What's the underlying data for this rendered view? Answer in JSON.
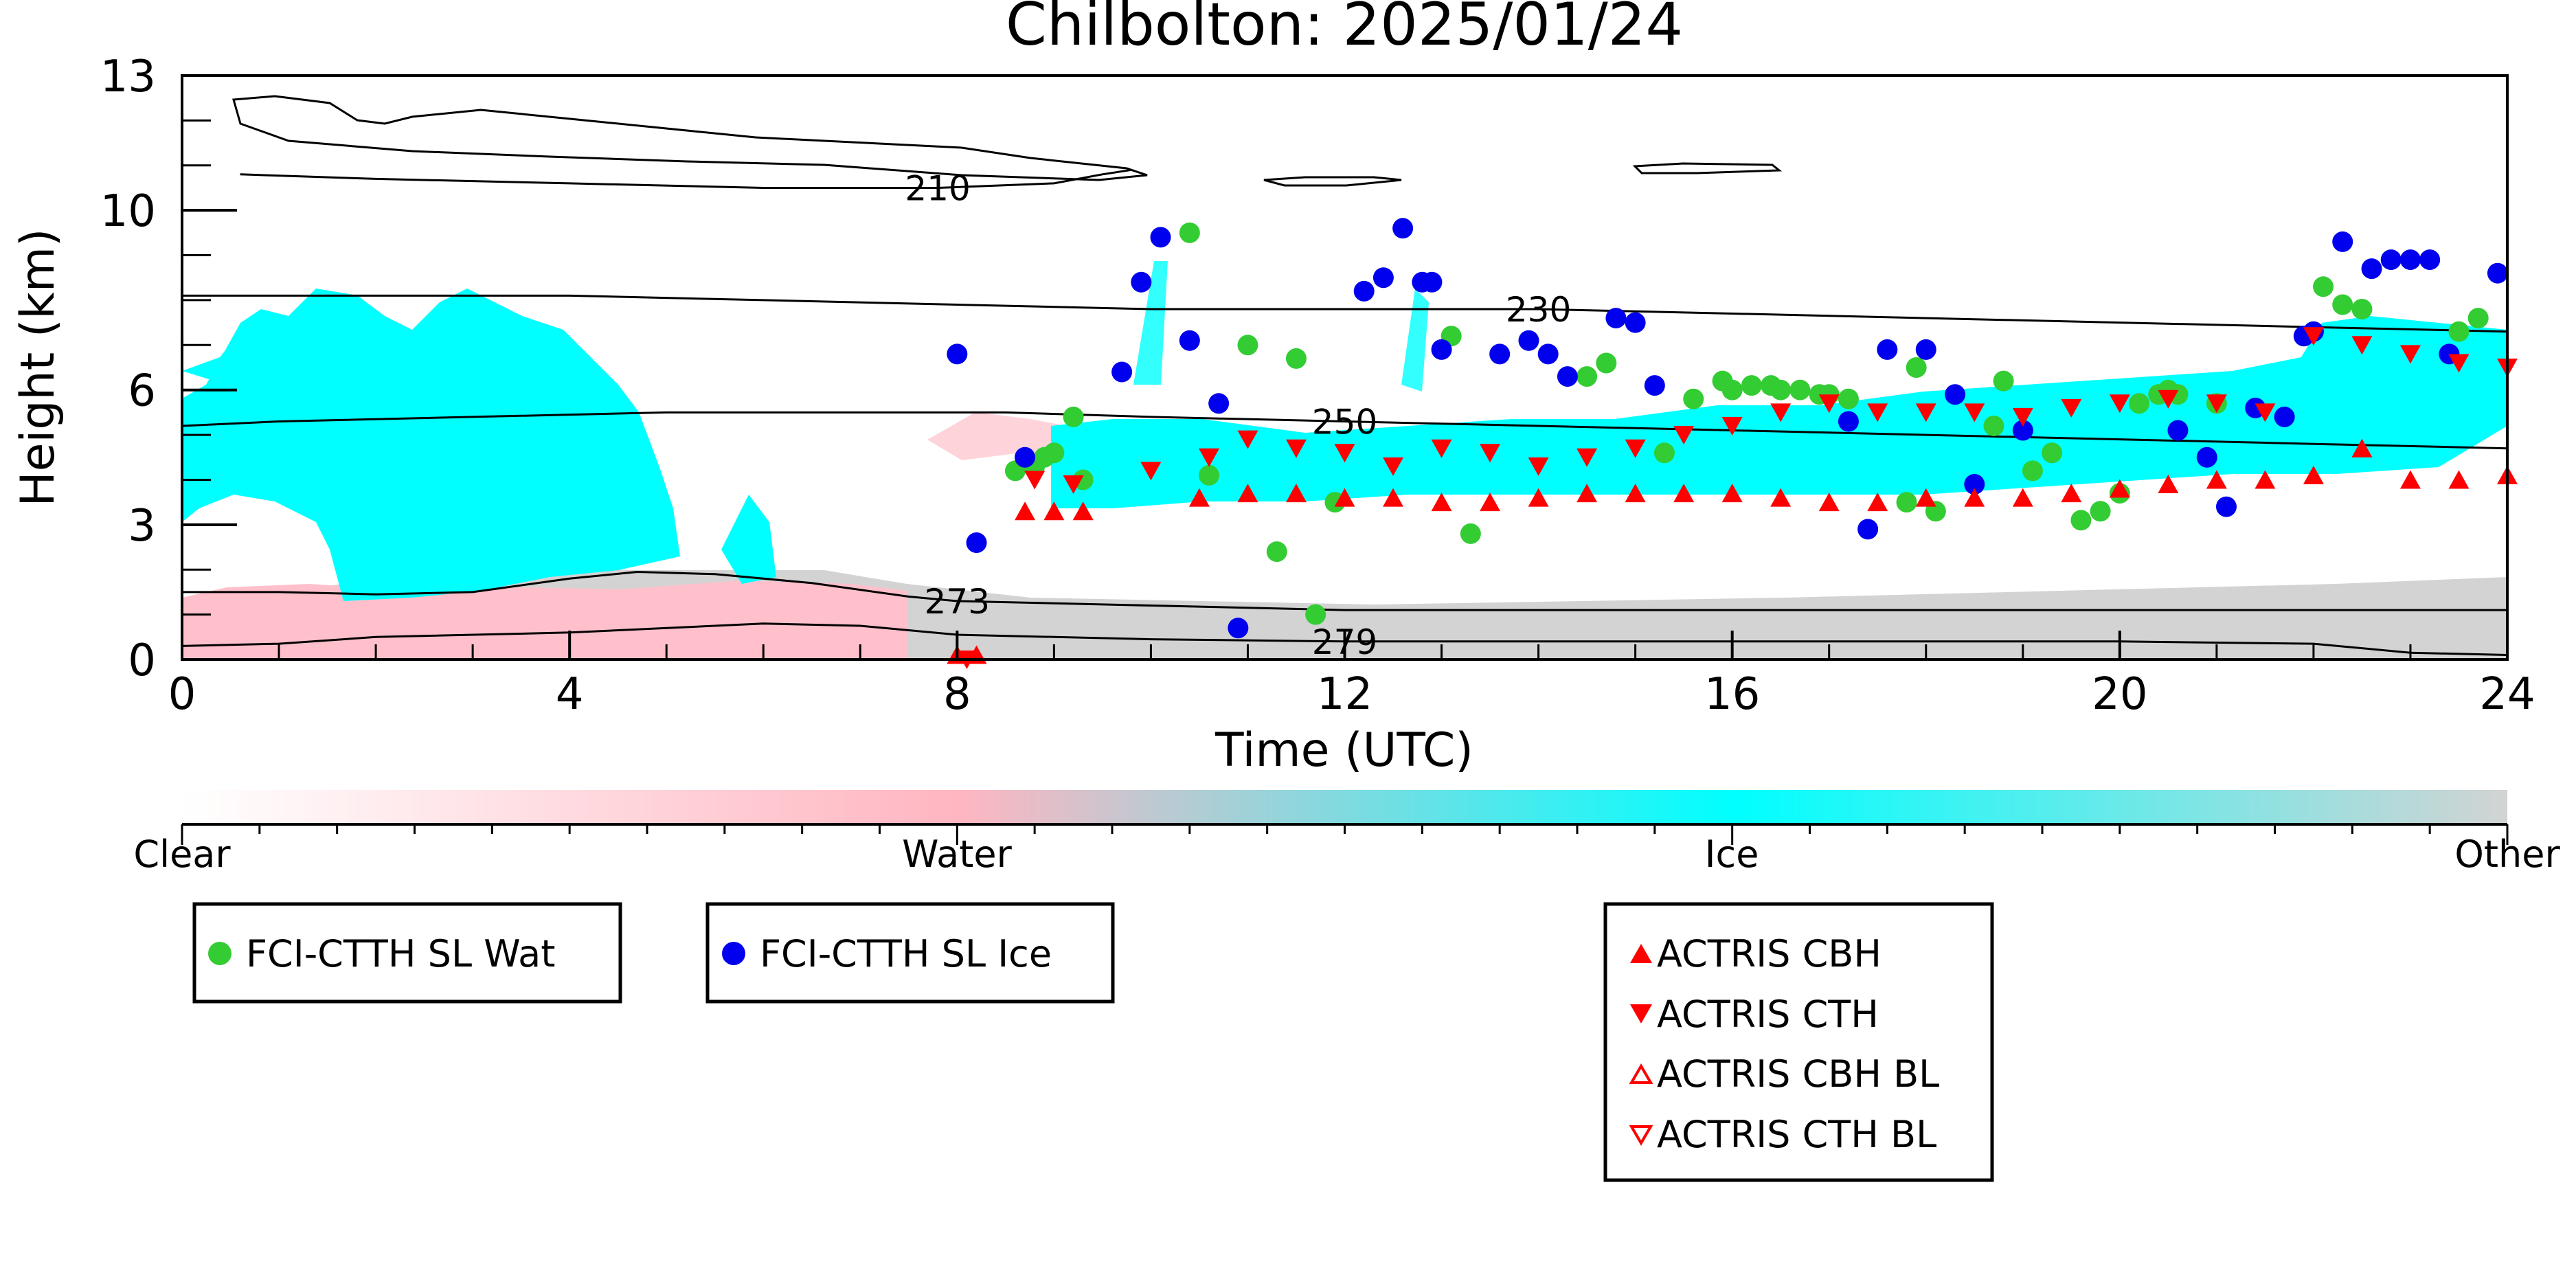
{
  "chart_data": {
    "type": "scatter",
    "title": "Chilbolton: 2025/01/24",
    "xlabel": "Time (UTC)",
    "ylabel": "Height (km)",
    "xlim": [
      0,
      24
    ],
    "ylim": [
      0,
      13
    ],
    "xticks": [
      0,
      4,
      8,
      12,
      16,
      20,
      24
    ],
    "yticks": [
      0,
      3,
      6,
      10,
      13
    ],
    "background": "cloud phase classification image (Clear / Water / Ice / Other)",
    "colorbar": {
      "labels": [
        "Clear",
        "Water",
        "Ice",
        "Other"
      ],
      "colors": [
        "#ffffff",
        "#ffb6c1",
        "#00ffff",
        "#d3d3d3"
      ]
    },
    "contours": [
      {
        "label": "210",
        "x": [
          0.6,
          2,
          4,
          6,
          7.8,
          9,
          9.5,
          9.8
        ],
        "y": [
          10.8,
          10.7,
          10.6,
          10.5,
          10.5,
          10.6,
          10.8,
          10.9
        ]
      },
      {
        "label": "230",
        "x": [
          0,
          2,
          4,
          6,
          8,
          10,
          12,
          14,
          16,
          18,
          20,
          22,
          24
        ],
        "y": [
          8.1,
          8.1,
          8.1,
          8.0,
          7.9,
          7.8,
          7.8,
          7.8,
          7.7,
          7.6,
          7.5,
          7.4,
          7.3
        ]
      },
      {
        "label": "250",
        "x": [
          0,
          1,
          3,
          5,
          7,
          8.5,
          10,
          12,
          14,
          16,
          18,
          20,
          22,
          24
        ],
        "y": [
          5.2,
          5.3,
          5.4,
          5.5,
          5.5,
          5.5,
          5.4,
          5.3,
          5.2,
          5.1,
          5.0,
          4.9,
          4.8,
          4.7
        ]
      },
      {
        "label": "273",
        "x": [
          0,
          1,
          2,
          3,
          4,
          4.7,
          5.5,
          6.5,
          7.5,
          8,
          10,
          12,
          14,
          16,
          18,
          20,
          22,
          24
        ],
        "y": [
          1.5,
          1.5,
          1.45,
          1.5,
          1.8,
          1.95,
          1.9,
          1.7,
          1.4,
          1.3,
          1.2,
          1.1,
          1.1,
          1.1,
          1.1,
          1.1,
          1.1,
          1.1
        ]
      },
      {
        "label": "279",
        "x": [
          0,
          1,
          2,
          4,
          6,
          7,
          8,
          10,
          12,
          14,
          16,
          18,
          20,
          22,
          23,
          24
        ],
        "y": [
          0.3,
          0.35,
          0.5,
          0.6,
          0.8,
          0.75,
          0.55,
          0.45,
          0.4,
          0.4,
          0.4,
          0.4,
          0.4,
          0.35,
          0.15,
          0.1
        ]
      }
    ],
    "series": [
      {
        "name": "FCI-CTTH SL Wat",
        "marker": "circle",
        "color": "#33cc33",
        "points": [
          [
            8.6,
            4.2
          ],
          [
            8.8,
            4.3
          ],
          [
            8.9,
            4.5
          ],
          [
            9.0,
            4.6
          ],
          [
            9.2,
            5.4
          ],
          [
            9.3,
            4.0
          ],
          [
            10.4,
            9.5
          ],
          [
            10.6,
            4.1
          ],
          [
            11.0,
            7.0
          ],
          [
            11.3,
            2.4
          ],
          [
            11.5,
            6.7
          ],
          [
            11.7,
            1.0
          ],
          [
            11.9,
            3.5
          ],
          [
            13.1,
            7.2
          ],
          [
            13.3,
            2.8
          ],
          [
            14.5,
            6.3
          ],
          [
            14.7,
            6.6
          ],
          [
            15.3,
            4.6
          ],
          [
            15.6,
            5.8
          ],
          [
            15.9,
            6.2
          ],
          [
            16.0,
            6.0
          ],
          [
            16.2,
            6.1
          ],
          [
            16.4,
            6.1
          ],
          [
            16.5,
            6.0
          ],
          [
            16.7,
            6.0
          ],
          [
            16.9,
            5.9
          ],
          [
            17.0,
            5.9
          ],
          [
            17.2,
            5.8
          ],
          [
            17.8,
            3.5
          ],
          [
            17.9,
            6.5
          ],
          [
            18.1,
            3.3
          ],
          [
            18.7,
            5.2
          ],
          [
            18.8,
            6.2
          ],
          [
            19.1,
            4.2
          ],
          [
            19.3,
            4.6
          ],
          [
            19.6,
            3.1
          ],
          [
            19.8,
            3.3
          ],
          [
            20.0,
            3.7
          ],
          [
            20.2,
            5.7
          ],
          [
            20.4,
            5.9
          ],
          [
            20.5,
            6.0
          ],
          [
            20.6,
            5.9
          ],
          [
            21.0,
            5.7
          ],
          [
            22.1,
            8.3
          ],
          [
            22.3,
            7.9
          ],
          [
            22.5,
            7.8
          ],
          [
            23.5,
            7.3
          ],
          [
            23.7,
            7.6
          ]
        ]
      },
      {
        "name": "FCI-CTTH SL Ice",
        "marker": "circle",
        "color": "#0000ee",
        "points": [
          [
            8.0,
            6.8
          ],
          [
            8.2,
            2.6
          ],
          [
            8.7,
            4.5
          ],
          [
            9.7,
            6.4
          ],
          [
            9.9,
            8.4
          ],
          [
            10.1,
            9.4
          ],
          [
            10.4,
            7.1
          ],
          [
            10.7,
            5.7
          ],
          [
            10.9,
            0.7
          ],
          [
            12.2,
            8.2
          ],
          [
            12.4,
            8.5
          ],
          [
            12.6,
            9.6
          ],
          [
            12.8,
            8.4
          ],
          [
            12.9,
            8.4
          ],
          [
            13.0,
            6.9
          ],
          [
            13.6,
            6.8
          ],
          [
            13.9,
            7.1
          ],
          [
            14.1,
            6.8
          ],
          [
            14.3,
            6.3
          ],
          [
            14.8,
            7.6
          ],
          [
            15.0,
            7.5
          ],
          [
            15.2,
            6.1
          ],
          [
            17.2,
            5.3
          ],
          [
            17.4,
            2.9
          ],
          [
            17.6,
            6.9
          ],
          [
            18.0,
            6.9
          ],
          [
            18.3,
            5.9
          ],
          [
            18.5,
            3.9
          ],
          [
            19.0,
            5.1
          ],
          [
            20.6,
            5.1
          ],
          [
            20.9,
            4.5
          ],
          [
            21.1,
            3.4
          ],
          [
            21.4,
            5.6
          ],
          [
            21.7,
            5.4
          ],
          [
            21.9,
            7.2
          ],
          [
            22.0,
            7.3
          ],
          [
            22.3,
            9.3
          ],
          [
            22.6,
            8.7
          ],
          [
            22.8,
            8.9
          ],
          [
            23.0,
            8.9
          ],
          [
            23.2,
            8.9
          ],
          [
            23.4,
            6.8
          ],
          [
            23.9,
            8.6
          ]
        ]
      },
      {
        "name": "ACTRIS CBH",
        "marker": "triangle-up",
        "color": "#ff0000",
        "points": [
          [
            8.0,
            0.1
          ],
          [
            8.2,
            0.1
          ],
          [
            8.7,
            3.3
          ],
          [
            9.0,
            3.3
          ],
          [
            9.3,
            3.3
          ],
          [
            10.5,
            3.6
          ],
          [
            11.0,
            3.7
          ],
          [
            11.5,
            3.7
          ],
          [
            12.0,
            3.6
          ],
          [
            12.5,
            3.6
          ],
          [
            13.0,
            3.5
          ],
          [
            13.5,
            3.5
          ],
          [
            14.0,
            3.6
          ],
          [
            14.5,
            3.7
          ],
          [
            15.0,
            3.7
          ],
          [
            15.5,
            3.7
          ],
          [
            16.0,
            3.7
          ],
          [
            16.5,
            3.6
          ],
          [
            17.0,
            3.5
          ],
          [
            17.5,
            3.5
          ],
          [
            18.0,
            3.6
          ],
          [
            18.5,
            3.6
          ],
          [
            19.0,
            3.6
          ],
          [
            19.5,
            3.7
          ],
          [
            20.0,
            3.8
          ],
          [
            20.5,
            3.9
          ],
          [
            21.0,
            4.0
          ],
          [
            21.5,
            4.0
          ],
          [
            22.0,
            4.1
          ],
          [
            22.5,
            4.7
          ],
          [
            23.0,
            4.0
          ],
          [
            23.5,
            4.0
          ],
          [
            24.0,
            4.1
          ]
        ]
      },
      {
        "name": "ACTRIS CTH",
        "marker": "triangle-down",
        "color": "#ff0000",
        "points": [
          [
            8.1,
            0.0
          ],
          [
            8.8,
            4.0
          ],
          [
            9.2,
            3.9
          ],
          [
            10.0,
            4.2
          ],
          [
            10.6,
            4.5
          ],
          [
            11.0,
            4.9
          ],
          [
            11.5,
            4.7
          ],
          [
            12.0,
            4.6
          ],
          [
            12.5,
            4.3
          ],
          [
            13.0,
            4.7
          ],
          [
            13.5,
            4.6
          ],
          [
            14.0,
            4.3
          ],
          [
            14.5,
            4.5
          ],
          [
            15.0,
            4.7
          ],
          [
            15.5,
            5.0
          ],
          [
            16.0,
            5.2
          ],
          [
            16.5,
            5.5
          ],
          [
            17.0,
            5.7
          ],
          [
            17.5,
            5.5
          ],
          [
            18.0,
            5.5
          ],
          [
            18.5,
            5.5
          ],
          [
            19.0,
            5.4
          ],
          [
            19.5,
            5.6
          ],
          [
            20.0,
            5.7
          ],
          [
            20.5,
            5.8
          ],
          [
            21.0,
            5.7
          ],
          [
            21.5,
            5.5
          ],
          [
            22.0,
            7.2
          ],
          [
            22.5,
            7.0
          ],
          [
            23.0,
            6.8
          ],
          [
            23.5,
            6.6
          ],
          [
            24.0,
            6.5
          ]
        ]
      },
      {
        "name": "ACTRIS CBH BL",
        "marker": "triangle-up-open",
        "color": "#ff0000",
        "points": []
      },
      {
        "name": "ACTRIS CTH BL",
        "marker": "triangle-down-open",
        "color": "#ff0000",
        "points": []
      }
    ],
    "legend": [
      {
        "placement": "below-left",
        "entries": [
          "FCI-CTTH SL Wat"
        ]
      },
      {
        "placement": "below-center-left",
        "entries": [
          "FCI-CTTH SL Ice"
        ]
      },
      {
        "placement": "below-right",
        "entries": [
          "ACTRIS CBH",
          "ACTRIS CTH",
          "ACTRIS CBH BL",
          "ACTRIS CTH BL"
        ]
      }
    ]
  }
}
